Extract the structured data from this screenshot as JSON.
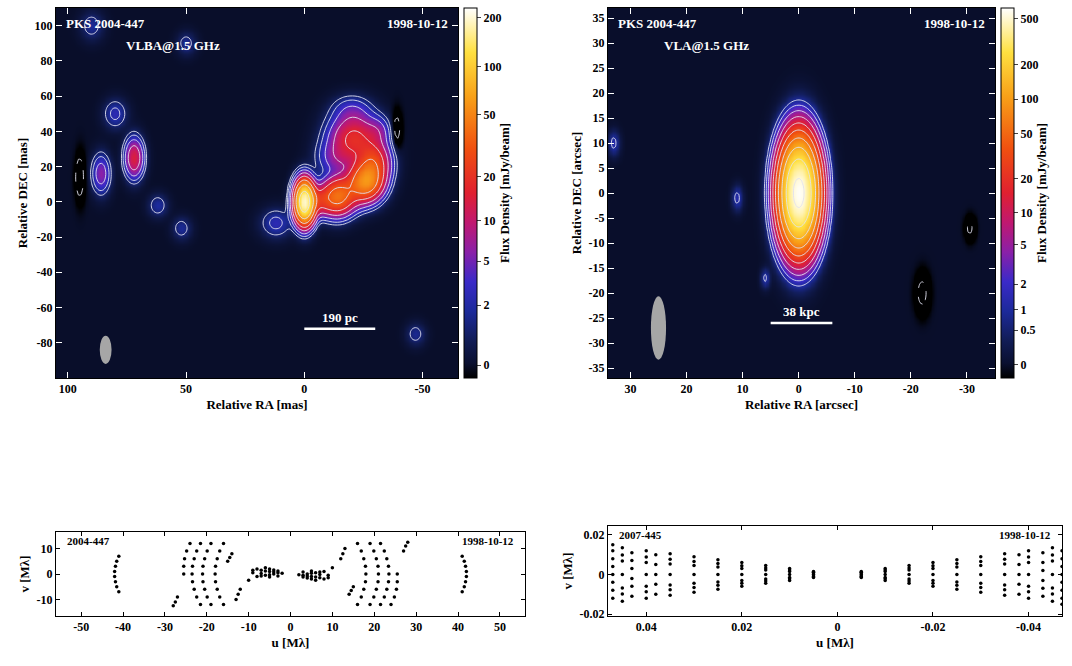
{
  "chart_data": [
    {
      "type": "image",
      "source": "PKS 2004-447",
      "date": "1998-10-12",
      "instrument": "VLBA@1.5 GHz",
      "x_label": "Relative RA [mas]",
      "y_label": "Relative DEC [mas]",
      "xlim": [
        105,
        -65
      ],
      "xticks": [
        100,
        50,
        0,
        -50
      ],
      "ylim": [
        -100,
        110
      ],
      "yticks": [
        -80,
        -60,
        -40,
        -20,
        0,
        20,
        40,
        60,
        80,
        100
      ],
      "components": [
        {
          "x": 0,
          "y": 0,
          "peak": 190,
          "sx": 2.3,
          "sy": 6.5
        },
        {
          "x": -6,
          "y": 1,
          "peak": 15,
          "sx": 4,
          "sy": 5
        },
        {
          "x": -14,
          "y": 3,
          "peak": 35,
          "sx": 4,
          "sy": 6
        },
        {
          "x": -20,
          "y": 7,
          "peak": 12,
          "sx": 5,
          "sy": 6
        },
        {
          "x": -26,
          "y": 12,
          "peak": 50,
          "sx": 4,
          "sy": 6
        },
        {
          "x": -29,
          "y": 22,
          "peak": 25,
          "sx": 4,
          "sy": 7
        },
        {
          "x": -21,
          "y": 36,
          "peak": 18,
          "sx": 6,
          "sy": 8
        },
        {
          "x": -14,
          "y": 25,
          "peak": 5,
          "sx": 5,
          "sy": 6
        },
        {
          "x": -20,
          "y": 52,
          "peak": 3,
          "sx": 5,
          "sy": 5
        },
        {
          "x": -31,
          "y": 40,
          "peak": 4,
          "sx": 3,
          "sy": 5
        },
        {
          "x": 12,
          "y": -12,
          "peak": 2.5,
          "sx": 4,
          "sy": 5
        },
        {
          "x": 72,
          "y": 25,
          "peak": 14,
          "sx": 2.3,
          "sy": 6.5
        },
        {
          "x": 86,
          "y": 16,
          "peak": 6,
          "sx": 2.3,
          "sy": 6.5
        },
        {
          "x": 80,
          "y": 50,
          "peak": 2.5,
          "sx": 3,
          "sy": 5
        },
        {
          "x": 62,
          "y": -2,
          "peak": 1.8,
          "sx": 2.5,
          "sy": 4
        },
        {
          "x": 52,
          "y": -15,
          "peak": 1.6,
          "sx": 2.5,
          "sy": 4
        },
        {
          "x": 50,
          "y": 90,
          "peak": 1.5,
          "sx": 2.5,
          "sy": 4
        },
        {
          "x": 90,
          "y": 100,
          "peak": 1.6,
          "sx": 3,
          "sy": 5
        },
        {
          "x": -47,
          "y": -75,
          "peak": 1.5,
          "sx": 2.5,
          "sy": 4
        },
        {
          "x": 95,
          "y": 14,
          "peak": -2,
          "sx": 1.4,
          "sy": 9
        },
        {
          "x": -39,
          "y": 41,
          "peak": -1.8,
          "sx": 1.4,
          "sy": 7
        }
      ],
      "contours": [
        1,
        2,
        4,
        8,
        16,
        32,
        64,
        128,
        -1
      ],
      "beam": {
        "x": 84,
        "y": -84,
        "width": 5,
        "height": 16
      },
      "scalebar": {
        "label": "190 pc",
        "x": [
          0,
          -30
        ],
        "y": -72
      },
      "colorbar": {
        "label": "Flux Density [mJy/beam]",
        "range": [
          -0.3,
          230
        ],
        "ticks": [
          0,
          2,
          5,
          10,
          20,
          50,
          100,
          200
        ]
      }
    },
    {
      "type": "image",
      "source": "PKS 2004-447",
      "date": "1998-10-12",
      "instrument": "VLA@1.5 GHz",
      "x_label": "Relative RA [arcsec]",
      "y_label": "Relative DEC [arcsec]",
      "xlim": [
        34,
        -35
      ],
      "xticks": [
        30,
        20,
        10,
        0,
        -10,
        -20,
        -30
      ],
      "ylim": [
        -37,
        37
      ],
      "yticks": [
        -35,
        -30,
        -25,
        -20,
        -15,
        -10,
        -5,
        0,
        5,
        10,
        15,
        20,
        25,
        30,
        35
      ],
      "components": [
        {
          "x": 0,
          "y": 0,
          "peak": 600,
          "sx": 1.7,
          "sy": 5.2
        },
        {
          "x": 11,
          "y": -1,
          "peak": 1.3,
          "sx": 0.6,
          "sy": 1.5
        },
        {
          "x": 33,
          "y": 10,
          "peak": 1.3,
          "sx": 0.6,
          "sy": 1.5
        },
        {
          "x": 6,
          "y": -17,
          "peak": 1.2,
          "sx": 0.5,
          "sy": 1.2
        },
        {
          "x": -22,
          "y": -20,
          "peak": -1.5,
          "sx": 0.8,
          "sy": 2.5
        },
        {
          "x": -30.5,
          "y": -7,
          "peak": -1.3,
          "sx": 0.6,
          "sy": 1.5
        }
      ],
      "contours": [
        1,
        2,
        4,
        8,
        16,
        32,
        64,
        128,
        256,
        512,
        -1
      ],
      "beam": {
        "x": 25,
        "y": -27,
        "width": 2.7,
        "height": 12.7
      },
      "scalebar": {
        "label": "38 kpc",
        "x": [
          5,
          -6
        ],
        "y": -26
      },
      "colorbar": {
        "label": "Flux Density [mJy/beam]",
        "range": [
          -0.15,
          620
        ],
        "ticks": [
          0,
          0.5,
          1,
          2,
          5,
          10,
          20,
          50,
          100,
          200,
          500
        ]
      }
    },
    {
      "type": "scatter",
      "source": "2004-447",
      "date": "1998-10-12",
      "x_label": "u [Mλ]",
      "y_label": "v [Mλ]",
      "xlim": [
        -56,
        56
      ],
      "xticks": [
        -50,
        -40,
        -30,
        -20,
        -10,
        0,
        10,
        20,
        30,
        40,
        50
      ],
      "ylim": [
        -16.5,
        16.5
      ],
      "yticks": [
        -10,
        0,
        10
      ],
      "color": "#000000",
      "x": [
        -41,
        -41.5,
        -41.8,
        -42,
        -42,
        -41.8,
        -41.5,
        -41,
        -16,
        -16.9,
        -17.5,
        -17.9,
        -18,
        -17.9,
        -17.5,
        -16.9,
        -16,
        -19,
        -19.9,
        -20.5,
        -20.9,
        -21,
        -20.9,
        -20.5,
        -19.9,
        -19,
        -21.5,
        -22.4,
        -23,
        -23.4,
        -23.5,
        -23.4,
        -23,
        -22.4,
        -21.5,
        -24,
        -24.8,
        -25.3,
        -25.5,
        -25.5,
        -27,
        -27.5,
        -28,
        -14,
        -14.5,
        -15,
        -12,
        -12.5,
        -13,
        -8,
        -7,
        -6,
        -5,
        -4,
        -3,
        -2,
        -8,
        -7,
        -6,
        -5,
        -4,
        -6,
        -5,
        -4,
        -3,
        -9,
        -7,
        -5,
        -3,
        -10,
        -9,
        41,
        41.5,
        41.8,
        42,
        42,
        41.8,
        41.5,
        41,
        16,
        16.9,
        17.5,
        17.9,
        18,
        17.9,
        17.5,
        16.9,
        16,
        19,
        19.9,
        20.5,
        20.9,
        21,
        20.9,
        20.5,
        19.9,
        19,
        21.5,
        22.4,
        23,
        23.4,
        23.5,
        23.4,
        23,
        22.4,
        21.5,
        24,
        24.8,
        25.3,
        25.5,
        25.5,
        27,
        27.5,
        28,
        14,
        14.5,
        15,
        12,
        12.5,
        13,
        8,
        7,
        6,
        5,
        4,
        3,
        2,
        8,
        7,
        6,
        5,
        4,
        6,
        5,
        4,
        3,
        9,
        7,
        5,
        3,
        10,
        9
      ],
      "values": [
        7,
        5,
        3,
        1,
        -1,
        -3,
        -5,
        -7,
        12,
        9,
        6,
        3,
        0,
        -3,
        -6,
        -9,
        -12,
        12,
        9,
        6,
        3,
        0,
        -3,
        -6,
        -9,
        -12,
        12,
        9,
        6,
        3,
        0,
        -3,
        -6,
        -9,
        -12,
        12,
        9,
        6,
        3,
        0,
        -9,
        -11,
        -12.5,
        8,
        6.5,
        5,
        -6,
        -8,
        -10,
        2,
        1.5,
        1.2,
        1,
        0.8,
        0.5,
        0.3,
        -1,
        -0.8,
        -0.5,
        -0.3,
        0,
        2.5,
        2,
        1.6,
        1.2,
        0.5,
        0.2,
        -1.2,
        -0.8,
        -2.5,
        1.5,
        -7,
        -5,
        -3,
        -1,
        1,
        3,
        5,
        7,
        -12,
        -9,
        -6,
        -3,
        0,
        3,
        6,
        9,
        12,
        -12,
        -9,
        -6,
        -3,
        0,
        3,
        6,
        9,
        12,
        -12,
        -9,
        -6,
        -3,
        0,
        3,
        6,
        9,
        12,
        -12,
        -9,
        -6,
        -3,
        0,
        9,
        11,
        12.5,
        -8,
        -6.5,
        -5,
        6,
        8,
        10,
        -2,
        -1.5,
        -1.2,
        -1,
        -0.8,
        -0.5,
        -0.3,
        1,
        0.8,
        0.5,
        0.3,
        0,
        -2.5,
        -2,
        -1.6,
        -1.2,
        -0.5,
        -0.2,
        1.2,
        0.8,
        2.5,
        -1.5
      ]
    },
    {
      "type": "scatter",
      "source": "2007-445",
      "date": "1998-10-12",
      "x_label": "u [Mλ]",
      "y_label": "v [Mλ]",
      "xlim": [
        0.048,
        -0.047
      ],
      "xticks": [
        0.04,
        0.02,
        0,
        -0.02,
        -0.04
      ],
      "ylim": [
        -0.021,
        0.0245
      ],
      "yticks": [
        -0.02,
        0,
        0.02
      ],
      "color": "#000000",
      "x": [
        0.005,
        0.01,
        0.015,
        0.02,
        0.025,
        0.03,
        0.035,
        0.04,
        0.045,
        0.005,
        0.01,
        0.015,
        0.02,
        0.025,
        0.03,
        0.035,
        0.04,
        0.045,
        0.005,
        0.01,
        0.015,
        0.02,
        0.025,
        0.03,
        0.035,
        0.04,
        0.045,
        0.005,
        0.01,
        0.015,
        0.02,
        0.025,
        0.03,
        0.035,
        0.04,
        0.045,
        0.005,
        0.01,
        0.015,
        0.02,
        0.025,
        0.03,
        0.035,
        0.04,
        0.045,
        0.005,
        0.01,
        0.015,
        0.02,
        0.025,
        0.03,
        0.035,
        0.04,
        0.045,
        0.005,
        0.01,
        0.015,
        0.02,
        0.025,
        0.03,
        0.035,
        0.04,
        0.045,
        0.047,
        0.047,
        0.047,
        0.047,
        0.047,
        0.047,
        0.047,
        0.047,
        0.043,
        0.043,
        0.043,
        0.043,
        0.043,
        0.043,
        0.038,
        0.038,
        0.038,
        0.038,
        0.038,
        -0.005,
        -0.01,
        -0.015,
        -0.02,
        -0.025,
        -0.03,
        -0.035,
        -0.04,
        -0.045,
        -0.005,
        -0.01,
        -0.015,
        -0.02,
        -0.025,
        -0.03,
        -0.035,
        -0.04,
        -0.045,
        -0.005,
        -0.01,
        -0.015,
        -0.02,
        -0.025,
        -0.03,
        -0.035,
        -0.04,
        -0.045,
        -0.005,
        -0.01,
        -0.015,
        -0.02,
        -0.025,
        -0.03,
        -0.035,
        -0.04,
        -0.045,
        -0.005,
        -0.01,
        -0.015,
        -0.02,
        -0.025,
        -0.03,
        -0.035,
        -0.04,
        -0.045,
        -0.005,
        -0.01,
        -0.015,
        -0.02,
        -0.025,
        -0.03,
        -0.035,
        -0.04,
        -0.045,
        -0.005,
        -0.01,
        -0.015,
        -0.02,
        -0.025,
        -0.03,
        -0.035,
        -0.04,
        -0.045,
        -0.047,
        -0.047,
        -0.047,
        -0.047,
        -0.047,
        -0.047,
        -0.047,
        -0.047,
        -0.043,
        -0.043,
        -0.043,
        -0.043,
        -0.043,
        -0.043,
        -0.038,
        -0.038,
        -0.038,
        -0.038,
        -0.038
      ],
      "values": [
        0.0015,
        0.003,
        0.0045,
        0.006,
        0.0075,
        0.009,
        0.0105,
        0.012,
        0.0135,
        0.0011,
        0.0022,
        0.0033,
        0.0044,
        0.0055,
        0.0066,
        0.0077,
        0.0088,
        0.0099,
        0.0008,
        0.0015,
        0.0023,
        0.003,
        0.0038,
        0.0045,
        0.0053,
        0.006,
        0.0068,
        0,
        0,
        0,
        0,
        0,
        0,
        0,
        0,
        0,
        -0.0008,
        -0.0015,
        -0.0023,
        -0.003,
        -0.0038,
        -0.0045,
        -0.0053,
        -0.006,
        -0.0068,
        -0.0011,
        -0.0022,
        -0.0033,
        -0.0044,
        -0.0055,
        -0.0066,
        -0.0077,
        -0.0088,
        -0.0099,
        -0.0015,
        -0.003,
        -0.0045,
        -0.006,
        -0.0075,
        -0.009,
        -0.0105,
        -0.012,
        -0.0135,
        -0.012,
        -0.008,
        -0.004,
        0,
        0.004,
        0.008,
        0.012,
        0.015,
        -0.011,
        -0.006,
        -0.002,
        0.003,
        0.007,
        0.011,
        -0.01,
        -0.005,
        0,
        0.005,
        0.01,
        -0.0015,
        -0.003,
        -0.0045,
        -0.006,
        -0.0075,
        -0.009,
        -0.0105,
        -0.012,
        -0.0135,
        -0.0011,
        -0.0022,
        -0.0033,
        -0.0044,
        -0.0055,
        -0.0066,
        -0.0077,
        -0.0088,
        -0.0099,
        -0.0008,
        -0.0015,
        -0.0023,
        -0.003,
        -0.0038,
        -0.0045,
        -0.0053,
        -0.006,
        -0.0068,
        0,
        0,
        0,
        0,
        0,
        0,
        0,
        0,
        0,
        0.0008,
        0.0015,
        0.0023,
        0.003,
        0.0038,
        0.0045,
        0.0053,
        0.006,
        0.0068,
        0.0011,
        0.0022,
        0.0033,
        0.0044,
        0.0055,
        0.0066,
        0.0077,
        0.0088,
        0.0099,
        0.0015,
        0.003,
        0.0045,
        0.006,
        0.0075,
        0.009,
        0.0105,
        0.012,
        0.0135,
        0.012,
        0.008,
        0.004,
        0,
        -0.004,
        -0.008,
        -0.012,
        -0.015,
        0.011,
        0.006,
        0.002,
        -0.003,
        -0.007,
        -0.011,
        0.01,
        0.005,
        0,
        -0.005,
        -0.01
      ]
    }
  ]
}
